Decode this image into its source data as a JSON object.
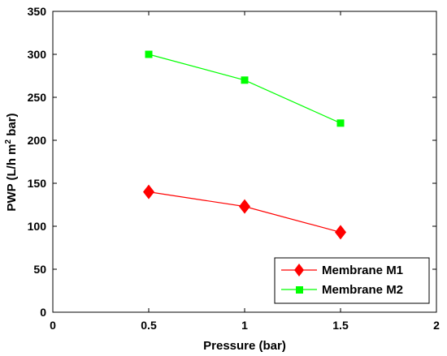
{
  "chart_data": {
    "type": "line",
    "xlabel": "Pressure (bar)",
    "ylabel": "PWP (L/h m² bar)",
    "ylabel_parts": {
      "before": "PWP (L/h m",
      "sup": "2",
      "after": " bar)"
    },
    "xlim": [
      0,
      2
    ],
    "ylim": [
      0,
      350
    ],
    "xticks": [
      "0",
      "0.5",
      "1",
      "1.5",
      "2"
    ],
    "yticks": [
      "0",
      "50",
      "100",
      "150",
      "200",
      "250",
      "300",
      "350"
    ],
    "grid": false,
    "legend_position": "bottom-right",
    "series": [
      {
        "name": "Membrane M1",
        "color": "#ff0000",
        "marker": "diamond",
        "x": [
          0.5,
          1.0,
          1.5
        ],
        "y": [
          140,
          123,
          93
        ]
      },
      {
        "name": "Membrane M2",
        "color": "#00ff00",
        "marker": "square",
        "x": [
          0.5,
          1.0,
          1.5
        ],
        "y": [
          300,
          270,
          220
        ]
      }
    ]
  }
}
